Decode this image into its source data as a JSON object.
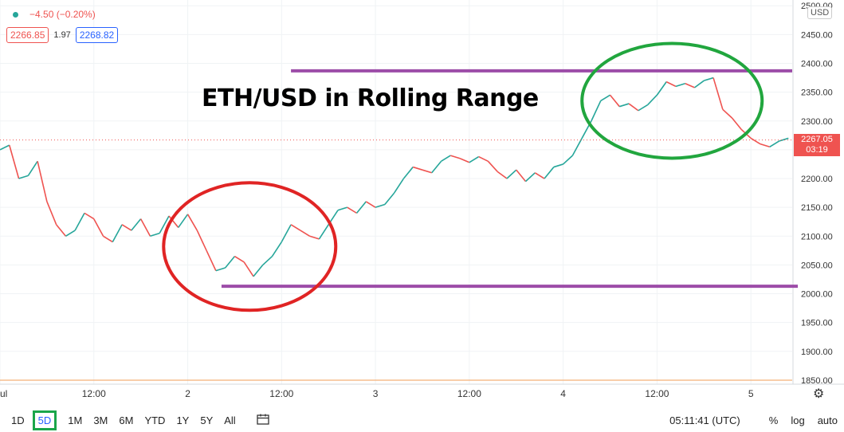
{
  "legend": {
    "change": "−4.50 (−0.20%)",
    "bid": "2266.85",
    "spread": "1.97",
    "ask": "2268.82"
  },
  "title": "ETH/USD in Rolling Range",
  "currency_badge": "USD",
  "last_price": {
    "value": "2267.05",
    "countdown": "03:19"
  },
  "bottom_bar": {
    "timeframes": [
      "1D",
      "5D",
      "1M",
      "3M",
      "6M",
      "YTD",
      "1Y",
      "5Y",
      "All"
    ],
    "active": "5D",
    "clock": "05:11:41 (UTC)",
    "percent": "%",
    "log": "log",
    "auto": "auto"
  },
  "colors": {
    "up": "#26a69a",
    "down": "#ef5350",
    "range_line": "#9c4ca8",
    "circle_red": "#e02424",
    "circle_green": "#21a63e",
    "volume": "#f5a05a"
  },
  "chart_data": {
    "type": "line",
    "title": "ETH/USD in Rolling Range",
    "y_ticks": [
      1850,
      1900,
      1950,
      2000,
      2050,
      2100,
      2150,
      2200,
      2250,
      2300,
      2350,
      2400,
      2450,
      2500
    ],
    "y_tick_labels": [
      "1850.00",
      "1900.00",
      "1950.00",
      "2000.00",
      "2050.00",
      "2100.00",
      "2150.00",
      "2200.00",
      "2250.00",
      "2300.00",
      "2350.00",
      "2400.00",
      "2450.00",
      "2500.00"
    ],
    "ylim": [
      1843,
      2510
    ],
    "x_ticks": [
      "ul",
      "12:00",
      "2",
      "12:00",
      "3",
      "12:00",
      "4",
      "12:00",
      "5"
    ],
    "x_tick_positions": [
      0,
      0.5,
      1,
      1.5,
      2,
      2.5,
      3,
      3.5,
      4
    ],
    "xlim": [
      0,
      4.22
    ],
    "price_series": {
      "x": [
        0.0,
        0.05,
        0.1,
        0.15,
        0.2,
        0.25,
        0.3,
        0.35,
        0.4,
        0.45,
        0.5,
        0.55,
        0.6,
        0.65,
        0.7,
        0.75,
        0.8,
        0.85,
        0.9,
        0.95,
        1.0,
        1.05,
        1.1,
        1.15,
        1.2,
        1.25,
        1.3,
        1.35,
        1.4,
        1.45,
        1.5,
        1.55,
        1.6,
        1.65,
        1.7,
        1.75,
        1.8,
        1.85,
        1.9,
        1.95,
        2.0,
        2.05,
        2.1,
        2.15,
        2.2,
        2.25,
        2.3,
        2.35,
        2.4,
        2.45,
        2.5,
        2.55,
        2.6,
        2.65,
        2.7,
        2.75,
        2.8,
        2.85,
        2.9,
        2.95,
        3.0,
        3.05,
        3.1,
        3.15,
        3.2,
        3.25,
        3.3,
        3.35,
        3.4,
        3.45,
        3.5,
        3.55,
        3.6,
        3.65,
        3.7,
        3.75,
        3.8,
        3.85,
        3.9,
        3.95,
        4.0,
        4.05,
        4.1,
        4.15,
        4.2
      ],
      "y": [
        2250,
        2258,
        2200,
        2205,
        2230,
        2160,
        2120,
        2100,
        2110,
        2140,
        2130,
        2100,
        2090,
        2120,
        2110,
        2130,
        2100,
        2105,
        2135,
        2115,
        2138,
        2110,
        2075,
        2040,
        2045,
        2065,
        2055,
        2030,
        2050,
        2065,
        2090,
        2120,
        2110,
        2100,
        2095,
        2120,
        2145,
        2150,
        2140,
        2160,
        2150,
        2155,
        2175,
        2200,
        2220,
        2215,
        2210,
        2230,
        2240,
        2235,
        2228,
        2238,
        2230,
        2212,
        2200,
        2215,
        2195,
        2210,
        2200,
        2220,
        2225,
        2240,
        2270,
        2300,
        2335,
        2345,
        2325,
        2330,
        2318,
        2328,
        2345,
        2368,
        2360,
        2365,
        2358,
        2370,
        2375,
        2320,
        2305,
        2285,
        2270,
        2260,
        2255,
        2265,
        2270
      ]
    },
    "resistance_level": 2387,
    "support_level": 2013,
    "last_price": 2267.05,
    "annotations": [
      "ETH/USD in Rolling Range"
    ]
  }
}
